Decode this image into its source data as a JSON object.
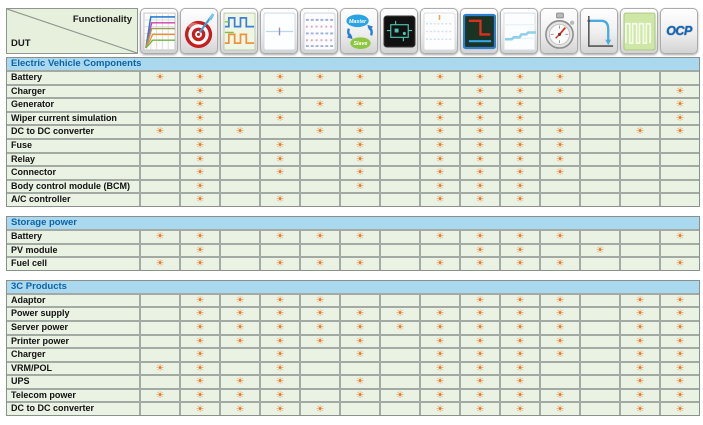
{
  "header": {
    "corner": {
      "top_label": "Functionality",
      "bottom_label": "DUT"
    },
    "columns": [
      {
        "icon": "iv-curves-icon"
      },
      {
        "icon": "target-icon"
      },
      {
        "icon": "square-waveforms-icon"
      },
      {
        "icon": "blank-display-icon"
      },
      {
        "icon": "waveform-list-icon"
      },
      {
        "icon": "master-slave-icon",
        "labels": [
          "Master",
          "Slave"
        ]
      },
      {
        "icon": "circuit-screen-icon"
      },
      {
        "icon": "dotted-trace-icon"
      },
      {
        "icon": "vi-curve-screen-icon"
      },
      {
        "icon": "rising-trend-icon"
      },
      {
        "icon": "stopwatch-icon"
      },
      {
        "icon": "current-limit-curve-icon"
      },
      {
        "icon": "pulse-train-icon"
      },
      {
        "icon": "ocp-icon",
        "label": "OCP"
      }
    ]
  },
  "mark": {
    "glyph": "☀",
    "color": "#ee7420",
    "meaning": "functionality supported"
  },
  "colors": {
    "section_header_bg": "#aad8ef",
    "section_header_text": "#0d63a8",
    "cell_bg": "#e9f2e3",
    "corner_bg": "#e7f0dd",
    "grid_line": "#a3aaa3",
    "mark_orange": "#ee7420"
  },
  "sections": [
    {
      "title": "Electric Vehicle Components",
      "rows": [
        {
          "label": "Battery",
          "marks": [
            1,
            2,
            4,
            5,
            6,
            8,
            9,
            10,
            11
          ]
        },
        {
          "label": "Charger",
          "marks": [
            2,
            4,
            9,
            10,
            11,
            14
          ]
        },
        {
          "label": "Generator",
          "marks": [
            2,
            5,
            6,
            8,
            9,
            10,
            14
          ]
        },
        {
          "label": "Wiper current simulation",
          "marks": [
            2,
            4,
            8,
            9,
            10,
            14
          ]
        },
        {
          "label": "DC to DC converter",
          "marks": [
            1,
            2,
            3,
            5,
            6,
            8,
            9,
            10,
            11,
            13,
            14
          ]
        },
        {
          "label": "Fuse",
          "marks": [
            2,
            4,
            6,
            8,
            9,
            10,
            11
          ]
        },
        {
          "label": "Relay",
          "marks": [
            2,
            4,
            6,
            8,
            9,
            10,
            11
          ]
        },
        {
          "label": "Connector",
          "marks": [
            2,
            4,
            6,
            8,
            9,
            10,
            11
          ]
        },
        {
          "label": "Body control module (BCM)",
          "marks": [
            2,
            6,
            8,
            9,
            10
          ]
        },
        {
          "label": "A/C controller",
          "marks": [
            2,
            4,
            8,
            9,
            10
          ]
        }
      ]
    },
    {
      "title": "Storage power",
      "rows": [
        {
          "label": "Battery",
          "marks": [
            1,
            2,
            4,
            5,
            6,
            8,
            9,
            10,
            11,
            14
          ]
        },
        {
          "label": "PV module",
          "marks": [
            2,
            9,
            10,
            12
          ]
        },
        {
          "label": "Fuel cell",
          "marks": [
            1,
            2,
            4,
            5,
            6,
            8,
            9,
            10,
            11,
            14
          ]
        }
      ]
    },
    {
      "title": "3C Products",
      "rows": [
        {
          "label": "Adaptor",
          "marks": [
            2,
            3,
            4,
            5,
            9,
            10,
            11,
            13,
            14
          ]
        },
        {
          "label": "Power supply",
          "marks": [
            2,
            3,
            4,
            5,
            6,
            7,
            8,
            9,
            10,
            11,
            13,
            14
          ]
        },
        {
          "label": "Server power",
          "marks": [
            2,
            3,
            4,
            5,
            6,
            7,
            8,
            9,
            10,
            11,
            13,
            14
          ]
        },
        {
          "label": "Printer power",
          "marks": [
            2,
            3,
            4,
            5,
            6,
            8,
            9,
            10,
            11,
            13,
            14
          ]
        },
        {
          "label": "Charger",
          "marks": [
            2,
            4,
            6,
            8,
            9,
            10,
            11,
            13,
            14
          ]
        },
        {
          "label": "VRM/POL",
          "marks": [
            1,
            2,
            4,
            8,
            9,
            10,
            13,
            14
          ]
        },
        {
          "label": "UPS",
          "marks": [
            2,
            3,
            4,
            6,
            8,
            9,
            10,
            13,
            14
          ]
        },
        {
          "label": "Telecom power",
          "marks": [
            1,
            2,
            3,
            4,
            6,
            7,
            8,
            9,
            10,
            11,
            13,
            14
          ]
        },
        {
          "label": "DC to DC converter",
          "marks": [
            2,
            3,
            4,
            5,
            8,
            9,
            10,
            11,
            13,
            14
          ]
        }
      ]
    }
  ]
}
